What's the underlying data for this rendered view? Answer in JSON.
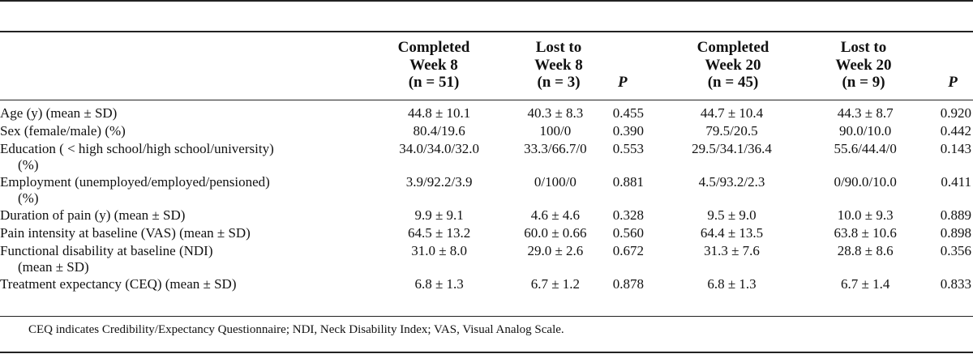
{
  "header": {
    "columns": [
      {
        "line1": "Completed",
        "line2": "Week 8",
        "line3": "(n = 51)"
      },
      {
        "line1": "Lost to",
        "line2": "Week 8",
        "line3": "(n = 3)"
      },
      {
        "label": "P"
      },
      {
        "line1": "Completed",
        "line2": "Week 20",
        "line3": "(n = 45)"
      },
      {
        "line1": "Lost to",
        "line2": "Week 20",
        "line3": "(n = 9)"
      },
      {
        "label": "P"
      }
    ]
  },
  "rows": [
    {
      "label": "Age (y) (mean ± SD)",
      "cont": "",
      "values": [
        "44.8 ± 10.1",
        "40.3 ± 8.3",
        "0.455",
        "44.7 ± 10.4",
        "44.3 ± 8.7",
        "0.920"
      ]
    },
    {
      "label": "Sex (female/male) (%)",
      "cont": "",
      "values": [
        "80.4/19.6",
        "100/0",
        "0.390",
        "79.5/20.5",
        "90.0/10.0",
        "0.442"
      ]
    },
    {
      "label": "Education ( < high school/high school/university)",
      "cont": "(%)",
      "values": [
        "34.0/34.0/32.0",
        "33.3/66.7/0",
        "0.553",
        "29.5/34.1/36.4",
        "55.6/44.4/0",
        "0.143"
      ]
    },
    {
      "label": "Employment (unemployed/employed/pensioned)",
      "cont": "(%)",
      "values": [
        "3.9/92.2/3.9",
        "0/100/0",
        "0.881",
        "4.5/93.2/2.3",
        "0/90.0/10.0",
        "0.411"
      ]
    },
    {
      "label": "Duration of pain (y) (mean ± SD)",
      "cont": "",
      "values": [
        "9.9 ± 9.1",
        "4.6 ± 4.6",
        "0.328",
        "9.5 ± 9.0",
        "10.0 ± 9.3",
        "0.889"
      ]
    },
    {
      "label": "Pain intensity at baseline (VAS) (mean ± SD)",
      "cont": "",
      "values": [
        "64.5 ± 13.2",
        "60.0 ± 0.66",
        "0.560",
        "64.4 ± 13.5",
        "63.8 ± 10.6",
        "0.898"
      ]
    },
    {
      "label": "Functional disability at baseline (NDI)",
      "cont": "(mean ± SD)",
      "values": [
        "31.0 ± 8.0",
        "29.0 ± 2.6",
        "0.672",
        "31.3 ± 7.6",
        "28.8 ± 8.6",
        "0.356"
      ]
    },
    {
      "label": "Treatment expectancy (CEQ) (mean ± SD)",
      "cont": "",
      "values": [
        "6.8 ± 1.3",
        "6.7 ± 1.2",
        "0.878",
        "6.8 ± 1.3",
        "6.7 ± 1.4",
        "0.833"
      ]
    }
  ],
  "footnote": "CEQ indicates Credibility/Expectancy Questionnaire; NDI, Neck Disability Index; VAS, Visual Analog Scale."
}
